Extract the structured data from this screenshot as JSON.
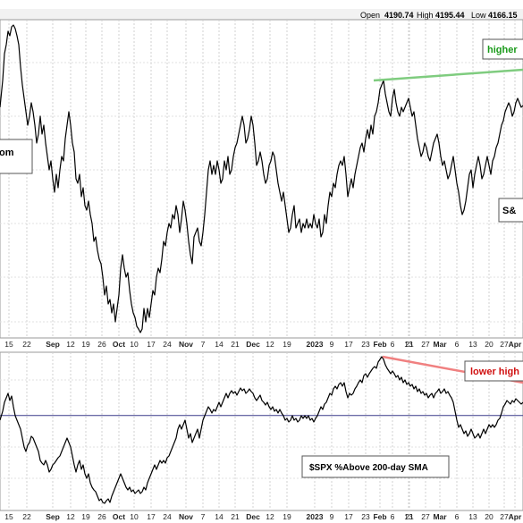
{
  "header": {
    "open_label": "Open",
    "open_value": "4190.74",
    "high_label": "High",
    "high_value": "4195.44",
    "low_label": "Low",
    "low_value": "4166.15"
  },
  "chart_data": [
    {
      "type": "line",
      "name": "price-panel",
      "x": [
        "Aug 15",
        "Aug 22",
        "Sep",
        "Sep 12",
        "Sep 19",
        "Sep 26",
        "Oct",
        "Oct 10",
        "Oct 17",
        "Oct 24",
        "Nov",
        "Nov 7",
        "Nov 14",
        "Nov 21",
        "Dec",
        "Dec 12",
        "Dec 19",
        "2023",
        "Jan 9",
        "Jan 17",
        "Jan 23",
        "Feb",
        "Feb 6",
        "Feb 13",
        "Feb 21",
        "Feb 27",
        "Mar",
        "Mar 6",
        "Mar 13",
        "Mar 20",
        "Mar 27",
        "Apr"
      ],
      "values": [
        4280,
        4300,
        4040,
        3970,
        3900,
        3700,
        3590,
        3610,
        3800,
        3880,
        3900,
        3950,
        4000,
        4020,
        3950,
        3950,
        3830,
        3830,
        3910,
        3980,
        4000,
        4150,
        4170,
        4100,
        4080,
        4000,
        3960,
        4050,
        3950,
        3980,
        4030,
        4110
      ],
      "x_ticks": [
        {
          "text": "15",
          "bold": false
        },
        {
          "text": "22",
          "bold": false
        },
        {
          "text": "Sep",
          "bold": true
        },
        {
          "text": "12",
          "bold": false
        },
        {
          "text": "19",
          "bold": false
        },
        {
          "text": "26",
          "bold": false
        },
        {
          "text": "Oct",
          "bold": true
        },
        {
          "text": "10",
          "bold": false
        },
        {
          "text": "17",
          "bold": false
        },
        {
          "text": "24",
          "bold": false
        },
        {
          "text": "Nov",
          "bold": true
        },
        {
          "text": "7",
          "bold": false
        },
        {
          "text": "14",
          "bold": false
        },
        {
          "text": "21",
          "bold": false
        },
        {
          "text": "Dec",
          "bold": true
        },
        {
          "text": "12",
          "bold": false
        },
        {
          "text": "19",
          "bold": false
        },
        {
          "text": "2023",
          "bold": true
        },
        {
          "text": "9",
          "bold": false
        },
        {
          "text": "17",
          "bold": false
        },
        {
          "text": "23",
          "bold": false
        },
        {
          "text": "Feb",
          "bold": true
        },
        {
          "text": "6",
          "bold": false
        },
        {
          "text": "13",
          "bold": false
        },
        {
          "text": "21",
          "bold": false
        },
        {
          "text": "27",
          "bold": false
        },
        {
          "text": "Mar",
          "bold": true
        },
        {
          "text": "6",
          "bold": false
        },
        {
          "text": "13",
          "bold": false
        },
        {
          "text": "20",
          "bold": false
        },
        {
          "text": "27",
          "bold": false
        },
        {
          "text": "Apr",
          "bold": true
        }
      ],
      "annotations": [
        {
          "text": "higher",
          "color": "#1a9a1a"
        },
        {
          "text": "om",
          "color": "#000000"
        },
        {
          "text": "S&",
          "color": "#000000"
        }
      ],
      "trendline_color": "#7fcc7f",
      "grid": true
    },
    {
      "type": "line",
      "name": "breadth-panel",
      "x": [
        "Aug 15",
        "Aug 22",
        "Sep",
        "Sep 12",
        "Sep 19",
        "Sep 26",
        "Oct",
        "Oct 10",
        "Oct 17",
        "Oct 24",
        "Nov",
        "Nov 7",
        "Nov 14",
        "Nov 21",
        "Dec",
        "Dec 12",
        "Dec 19",
        "2023",
        "Jan 9",
        "Jan 17",
        "Jan 23",
        "Feb",
        "Feb 6",
        "Feb 13",
        "Feb 21",
        "Feb 27",
        "Mar",
        "Mar 6",
        "Mar 13",
        "Mar 20",
        "Mar 27",
        "Apr"
      ],
      "values": [
        50,
        51,
        43,
        40,
        34,
        25,
        24,
        26,
        30,
        38,
        45,
        52,
        55,
        59,
        50,
        52,
        49,
        51,
        56,
        59,
        62,
        68,
        64,
        60,
        58,
        55,
        45,
        47,
        44,
        47,
        50,
        56
      ],
      "reference_line": 50,
      "annotations": [
        {
          "text": "lower high",
          "color": "#d01010"
        },
        {
          "text": "$SPX %Above 200-day SMA",
          "color": "#000000"
        }
      ],
      "trendline_color": "#f08080",
      "grid": true
    }
  ]
}
